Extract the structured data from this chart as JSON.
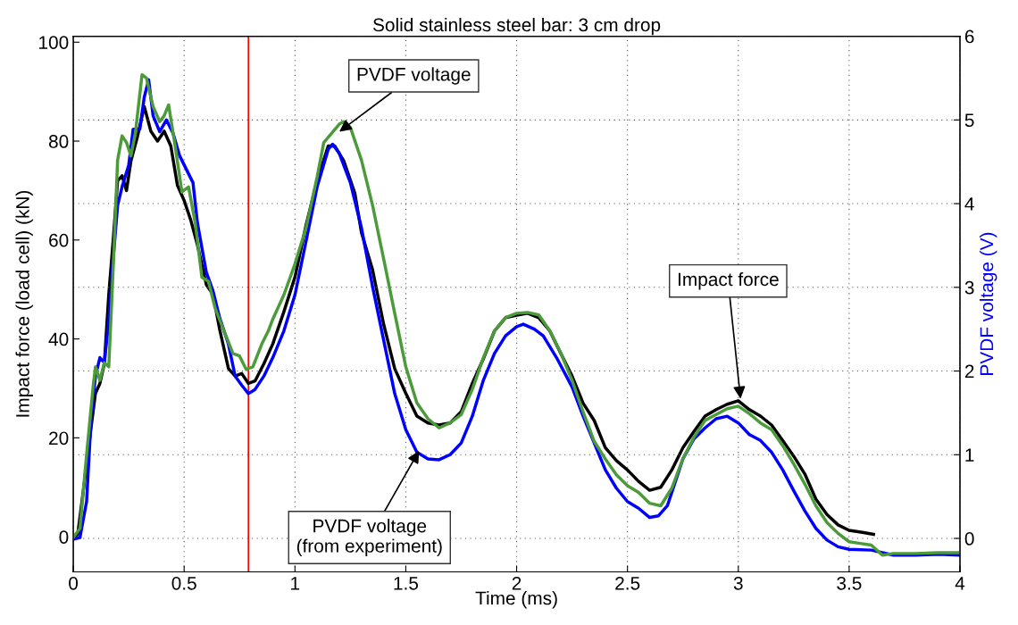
{
  "chart_data": {
    "type": "line",
    "title": "Solid stainless steel bar: 3 cm drop",
    "xlabel": "Time (ms)",
    "ylabel": "Impact force (load cell) (kN)",
    "y2label": "PVDF voltage (V)",
    "xlim": [
      0,
      4
    ],
    "xticks": [
      0,
      0.5,
      1,
      1.5,
      2,
      2.5,
      3,
      3.5,
      4
    ],
    "ylim": [
      -7.1,
      101.2
    ],
    "yticks": [
      0,
      20,
      40,
      60,
      80,
      100
    ],
    "y2lim": [
      -0.4,
      6
    ],
    "y2ticks": [
      0,
      1,
      2,
      3,
      4,
      5,
      6
    ],
    "grid": true,
    "line_style": "solid",
    "marker": "none",
    "ref_lines": [
      {
        "axis": "x",
        "value": 0.79,
        "color": "#ff0000"
      }
    ],
    "annotations": [
      {
        "text": "PVDF voltage",
        "x": 1.2,
        "y": 81.9
      },
      {
        "text": "PVDF voltage\n(from experiment)",
        "x": 1.56,
        "y": 17.4
      },
      {
        "text": "Impact force",
        "x": 3.01,
        "y": 27.9
      }
    ],
    "series": [
      {
        "color": "#000000",
        "x": [
          0,
          0.02,
          0.05,
          0.08,
          0.1,
          0.12,
          0.14,
          0.16,
          0.18,
          0.2,
          0.22,
          0.24,
          0.26,
          0.29,
          0.32,
          0.35,
          0.38,
          0.41,
          0.44,
          0.47,
          0.5,
          0.53,
          0.56,
          0.6,
          0.63,
          0.66,
          0.7,
          0.73,
          0.76,
          0.79,
          0.82,
          0.86,
          0.9,
          0.95,
          1.0,
          1.05,
          1.1,
          1.15,
          1.18,
          1.22,
          1.27,
          1.3,
          1.35,
          1.4,
          1.45,
          1.5,
          1.55,
          1.6,
          1.65,
          1.7,
          1.75,
          1.8,
          1.85,
          1.9,
          1.95,
          2.0,
          2.05,
          2.1,
          2.15,
          2.2,
          2.25,
          2.3,
          2.35,
          2.4,
          2.45,
          2.5,
          2.55,
          2.6,
          2.65,
          2.7,
          2.75,
          2.8,
          2.85,
          2.9,
          2.95,
          3.0,
          3.05,
          3.1,
          3.15,
          3.2,
          3.25,
          3.3,
          3.35,
          3.4,
          3.45,
          3.5,
          3.56,
          3.61
        ],
        "values": [
          0,
          0.5,
          11,
          22,
          29,
          31,
          35,
          49,
          60,
          72,
          73,
          70,
          76,
          81,
          87,
          82,
          80,
          82,
          79,
          71,
          68,
          64,
          59,
          51,
          49,
          42,
          34,
          32.5,
          33,
          31,
          31.5,
          35,
          39,
          45.5,
          52.5,
          63,
          72,
          79,
          79,
          76,
          69.5,
          61.5,
          54,
          43,
          34,
          29,
          24.4,
          23,
          22.6,
          23,
          25.3,
          31,
          36,
          41.6,
          44.3,
          44.8,
          45.2,
          44.3,
          41.6,
          37,
          32.5,
          27,
          23.5,
          18,
          15.4,
          13.5,
          11.2,
          9.4,
          10,
          13.5,
          18,
          21.3,
          24.4,
          25.7,
          26.8,
          27.5,
          25.7,
          24.4,
          22.6,
          19.5,
          16.3,
          12.7,
          7.6,
          4.5,
          2.4,
          1.3,
          0.9,
          0.5
        ]
      },
      {
        "color": "#4b9b3a",
        "axis": "y2",
        "x": [
          0,
          0.03,
          0.06,
          0.09,
          0.1,
          0.12,
          0.14,
          0.16,
          0.18,
          0.2,
          0.22,
          0.24,
          0.26,
          0.28,
          0.31,
          0.33,
          0.36,
          0.39,
          0.41,
          0.43,
          0.46,
          0.49,
          0.52,
          0.55,
          0.58,
          0.61,
          0.64,
          0.68,
          0.72,
          0.75,
          0.78,
          0.81,
          0.85,
          0.88,
          0.9,
          0.95,
          1.0,
          1.05,
          1.1,
          1.13,
          1.2,
          1.22,
          1.25,
          1.3,
          1.35,
          1.4,
          1.45,
          1.5,
          1.55,
          1.6,
          1.65,
          1.7,
          1.75,
          1.8,
          1.85,
          1.9,
          1.95,
          2.0,
          2.05,
          2.1,
          2.15,
          2.2,
          2.25,
          2.3,
          2.35,
          2.4,
          2.45,
          2.5,
          2.55,
          2.6,
          2.65,
          2.7,
          2.75,
          2.8,
          2.85,
          2.9,
          2.95,
          3.0,
          3.05,
          3.1,
          3.15,
          3.2,
          3.25,
          3.3,
          3.35,
          3.4,
          3.45,
          3.5,
          3.55,
          3.6,
          3.65,
          3.7,
          3.8,
          3.9,
          4.0
        ],
        "values": [
          0.01,
          0.12,
          1.0,
          1.83,
          2.05,
          1.89,
          2.1,
          2.05,
          3.23,
          4.52,
          4.81,
          4.73,
          4.57,
          4.84,
          5.54,
          5.5,
          5.16,
          4.98,
          5.05,
          5.18,
          4.68,
          4.14,
          4.2,
          3.77,
          3.12,
          3.07,
          2.75,
          2.48,
          2.21,
          2.18,
          2.02,
          2.05,
          2.32,
          2.48,
          2.62,
          2.91,
          3.28,
          3.71,
          4.32,
          4.73,
          4.95,
          4.98,
          4.91,
          4.52,
          3.98,
          3.34,
          2.69,
          2.05,
          1.62,
          1.43,
          1.32,
          1.38,
          1.48,
          1.78,
          2.16,
          2.48,
          2.64,
          2.69,
          2.7,
          2.67,
          2.48,
          2.21,
          1.89,
          1.51,
          1.16,
          0.95,
          0.76,
          0.63,
          0.55,
          0.42,
          0.39,
          0.6,
          0.95,
          1.21,
          1.41,
          1.48,
          1.55,
          1.58,
          1.49,
          1.38,
          1.3,
          1.11,
          0.89,
          0.65,
          0.39,
          0.19,
          0.06,
          -0.04,
          -0.06,
          -0.08,
          -0.2,
          -0.18,
          -0.18,
          -0.17,
          -0.17
        ]
      },
      {
        "color": "#0000ff",
        "axis": "y2",
        "x": [
          0,
          0.03,
          0.06,
          0.08,
          0.1,
          0.12,
          0.14,
          0.16,
          0.18,
          0.2,
          0.22,
          0.25,
          0.27,
          0.3,
          0.32,
          0.34,
          0.36,
          0.39,
          0.42,
          0.45,
          0.48,
          0.51,
          0.54,
          0.56,
          0.6,
          0.63,
          0.66,
          0.7,
          0.73,
          0.76,
          0.79,
          0.82,
          0.86,
          0.9,
          0.95,
          1.0,
          1.05,
          1.1,
          1.15,
          1.17,
          1.2,
          1.25,
          1.3,
          1.35,
          1.4,
          1.45,
          1.5,
          1.55,
          1.6,
          1.65,
          1.7,
          1.75,
          1.8,
          1.85,
          1.9,
          1.95,
          2.0,
          2.03,
          2.08,
          2.12,
          2.18,
          2.25,
          2.3,
          2.35,
          2.4,
          2.45,
          2.5,
          2.55,
          2.6,
          2.64,
          2.68,
          2.75,
          2.8,
          2.85,
          2.9,
          2.95,
          3.0,
          3.05,
          3.1,
          3.15,
          3.2,
          3.25,
          3.3,
          3.35,
          3.4,
          3.45,
          3.5,
          3.6,
          3.7,
          3.8,
          3.9,
          4.0
        ],
        "values": [
          -0.01,
          0.01,
          0.44,
          1.41,
          1.94,
          2.16,
          2.1,
          2.59,
          3.34,
          3.98,
          4.2,
          4.46,
          4.89,
          4.89,
          5.27,
          5.48,
          5.05,
          4.86,
          5.0,
          4.84,
          4.57,
          4.41,
          4.25,
          3.77,
          3.18,
          2.96,
          2.64,
          2.32,
          1.94,
          1.83,
          1.73,
          1.78,
          1.94,
          2.16,
          2.48,
          2.91,
          3.55,
          4.2,
          4.65,
          4.71,
          4.6,
          4.25,
          3.71,
          3.01,
          2.37,
          1.73,
          1.3,
          1.03,
          0.95,
          0.94,
          1.0,
          1.14,
          1.46,
          1.89,
          2.21,
          2.42,
          2.53,
          2.56,
          2.5,
          2.42,
          2.16,
          1.81,
          1.46,
          1.14,
          0.82,
          0.6,
          0.44,
          0.36,
          0.25,
          0.27,
          0.39,
          0.95,
          1.19,
          1.32,
          1.43,
          1.46,
          1.38,
          1.24,
          1.17,
          1.03,
          0.82,
          0.57,
          0.33,
          0.12,
          -0.02,
          -0.1,
          -0.13,
          -0.14,
          -0.2,
          -0.2,
          -0.19,
          -0.2
        ]
      }
    ]
  }
}
